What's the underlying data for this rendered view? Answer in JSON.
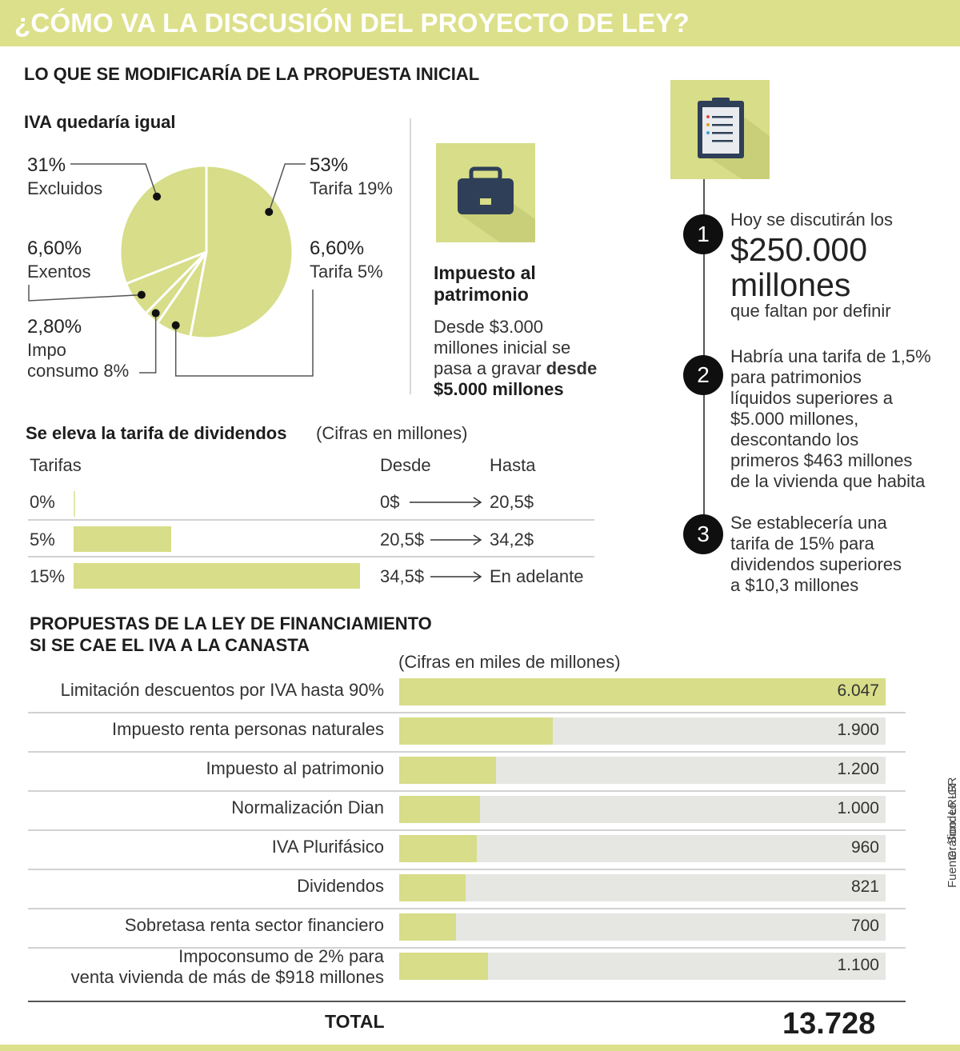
{
  "title": "¿CÓMO VA LA DISCUSIÓN DEL PROYECTO DE LEY?",
  "section1": {
    "heading": "LO QUE SE MODIFICARÍA DE LA PROPUESTA INICIAL"
  },
  "iva": {
    "title": "IVA quedaría igual",
    "labels": [
      {
        "pct": "31%",
        "name": "Excluidos"
      },
      {
        "pct": "53%",
        "name": "Tarifa 19%"
      },
      {
        "pct": "6,60%",
        "name": "Exentos"
      },
      {
        "pct": "6,60%",
        "name": "Tarifa 5%"
      },
      {
        "pct": "2,80%",
        "name": "Impo",
        "name2": "consumo 8%"
      }
    ]
  },
  "patrimonio": {
    "title1": "Impuesto al",
    "title2": "patrimonio",
    "line1": "Desde $3.000",
    "line2": "millones inicial se",
    "line3a": "pasa a gravar ",
    "line3b": "desde",
    "line4": "$5.000 millones"
  },
  "dividendos": {
    "title": "Se eleva la tarifa de dividendos",
    "note": "(Cifras en millones)",
    "col_tarifas": "Tarifas",
    "col_desde": "Desde",
    "col_hasta": "Hasta",
    "rows": [
      {
        "tarifa": "0%",
        "desde": "0$",
        "hasta": "20,5$"
      },
      {
        "tarifa": "5%",
        "desde": "20,5$",
        "hasta": "34,2$"
      },
      {
        "tarifa": "15%",
        "desde": "34,5$",
        "hasta": "En adelante"
      }
    ]
  },
  "steps": {
    "s1": {
      "n": "1",
      "a": "Hoy se discutirán los",
      "big1": "$250.000",
      "big2": "millones",
      "b": "que faltan por definir"
    },
    "s2": {
      "n": "2",
      "lines": [
        "Habría una tarifa de 1,5%",
        "para patrimonios",
        "líquidos superiores a",
        "$5.000 millones,",
        "descontando los",
        "primeros $463 millones",
        "de la vivienda que habita"
      ]
    },
    "s3": {
      "n": "3",
      "lines": [
        "Se establecería una",
        "tarifa de 15% para",
        "dividendos superiores",
        "a $10,3 millones"
      ]
    }
  },
  "propuestas": {
    "heading1": "PROPUESTAS DE LA LEY DE FINANCIAMIENTO",
    "heading2": "SI SE CAE EL IVA A LA CANASTA",
    "note": "(Cifras en miles de millones)",
    "total_label": "TOTAL",
    "total_value": "13.728"
  },
  "source": "Fuente: Sondeo LR",
  "credit": "Gráfico: LR-GR",
  "colors": {
    "accent": "#d7dd88",
    "header": "#dde08a",
    "bar_bg": "#e6e6e3",
    "dark": "#0f0f0f",
    "case": "#2e3f57"
  },
  "chart_data": [
    {
      "type": "pie",
      "title": "IVA quedaría igual",
      "categories": [
        "Tarifa 19%",
        "Tarifa 5%",
        "Impo consumo 8%",
        "Exentos",
        "Excluidos"
      ],
      "values": [
        53,
        6.6,
        2.8,
        6.6,
        31
      ]
    },
    {
      "type": "bar",
      "title": "Se eleva la tarifa de dividendos",
      "categories": [
        "0%",
        "5%",
        "15%"
      ],
      "values": [
        0,
        34.2,
        100
      ]
    },
    {
      "type": "bar",
      "title": "PROPUESTAS DE LA LEY DE FINANCIAMIENTO SI SE CAE EL IVA A LA CANASTA",
      "categories": [
        "Limitación descuentos por IVA hasta 90%",
        "Impuesto renta personas naturales",
        "Impuesto al patrimonio",
        "Normalización Dian",
        "IVA Plurifásico",
        "Dividendos",
        "Sobretasa renta sector financiero",
        "Impoconsumo de 2% para venta vivienda de más de $918 millones"
      ],
      "labels": [
        [
          "Limitación descuentos por IVA hasta 90%"
        ],
        [
          "Impuesto renta personas naturales"
        ],
        [
          "Impuesto al patrimonio"
        ],
        [
          "Normalización Dian"
        ],
        [
          "IVA Plurifásico"
        ],
        [
          "Dividendos"
        ],
        [
          "Sobretasa renta sector financiero"
        ],
        [
          "Impoconsumo de 2% para",
          "venta vivienda de más de $918 millones"
        ]
      ],
      "values": [
        6047,
        1900,
        1200,
        1000,
        960,
        821,
        700,
        1100
      ],
      "value_labels": [
        "6.047",
        "1.900",
        "1.200",
        "1.000",
        "960",
        "821",
        "700",
        "1.100"
      ],
      "xlim": [
        0,
        6500
      ]
    }
  ]
}
